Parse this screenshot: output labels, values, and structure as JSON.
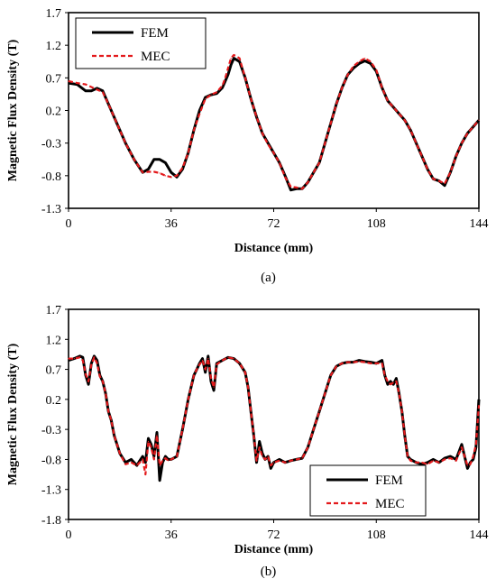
{
  "chart_data": [
    {
      "type": "line",
      "panel_label": "(a)",
      "xlabel": "Distance (mm)",
      "ylabel": "Magnetic Flux Density (T)",
      "xlim": [
        0,
        144
      ],
      "ylim": [
        -1.3,
        1.7
      ],
      "xticks": [
        0,
        36,
        72,
        108,
        144
      ],
      "yticks": [
        "1.7",
        "1.2",
        "0.7",
        "0.2",
        "-0.3",
        "-0.8",
        "-1.3"
      ],
      "legend_position": "top-left",
      "grid": false,
      "series": [
        {
          "name": "FEM",
          "color": "#000000",
          "style": "solid",
          "x": [
            0,
            3,
            6,
            8,
            10,
            12,
            14,
            17,
            20,
            23,
            26,
            28,
            30,
            32,
            34,
            36,
            38,
            40,
            42,
            44,
            46,
            48,
            50,
            52,
            54,
            55,
            56,
            57,
            58,
            60,
            62,
            64,
            66,
            68,
            70,
            72,
            74,
            76,
            78,
            80,
            82,
            84,
            86,
            88,
            90,
            92,
            94,
            96,
            98,
            100,
            102,
            104,
            106,
            108,
            110,
            112,
            114,
            116,
            118,
            120,
            122,
            124,
            126,
            128,
            130,
            132,
            134,
            136,
            138,
            140,
            142,
            144
          ],
          "values": [
            0.62,
            0.6,
            0.5,
            0.5,
            0.54,
            0.5,
            0.3,
            0.0,
            -0.3,
            -0.55,
            -0.75,
            -0.7,
            -0.55,
            -0.55,
            -0.6,
            -0.75,
            -0.82,
            -0.7,
            -0.45,
            -0.1,
            0.2,
            0.4,
            0.44,
            0.46,
            0.55,
            0.65,
            0.75,
            0.9,
            1.0,
            0.95,
            0.7,
            0.38,
            0.1,
            -0.15,
            -0.3,
            -0.45,
            -0.6,
            -0.8,
            -1.02,
            -1.0,
            -1.0,
            -0.9,
            -0.75,
            -0.6,
            -0.3,
            0.0,
            0.3,
            0.55,
            0.75,
            0.85,
            0.92,
            0.96,
            0.92,
            0.8,
            0.55,
            0.35,
            0.25,
            0.15,
            0.05,
            -0.1,
            -0.3,
            -0.5,
            -0.7,
            -0.85,
            -0.88,
            -0.95,
            -0.75,
            -0.5,
            -0.3,
            -0.15,
            -0.05,
            0.05
          ]
        },
        {
          "name": "MEC",
          "color": "#e31a1c",
          "style": "dashed",
          "x": [
            0,
            3,
            6,
            8,
            10,
            12,
            14,
            17,
            20,
            23,
            26,
            28,
            30,
            32,
            34,
            36,
            38,
            40,
            42,
            44,
            46,
            48,
            50,
            52,
            54,
            55,
            56,
            57,
            58,
            60,
            62,
            64,
            66,
            68,
            70,
            72,
            74,
            76,
            78,
            80,
            82,
            84,
            86,
            88,
            90,
            92,
            94,
            96,
            98,
            100,
            102,
            104,
            106,
            108,
            110,
            112,
            114,
            116,
            118,
            120,
            122,
            124,
            126,
            128,
            130,
            132,
            134,
            136,
            138,
            140,
            142,
            144
          ],
          "values": [
            0.65,
            0.62,
            0.6,
            0.56,
            0.52,
            0.48,
            0.3,
            0.0,
            -0.3,
            -0.55,
            -0.75,
            -0.74,
            -0.74,
            -0.76,
            -0.8,
            -0.82,
            -0.8,
            -0.68,
            -0.45,
            -0.1,
            0.15,
            0.38,
            0.44,
            0.48,
            0.58,
            0.7,
            0.85,
            1.0,
            1.05,
            1.0,
            0.7,
            0.38,
            0.1,
            -0.15,
            -0.32,
            -0.45,
            -0.6,
            -0.82,
            -0.97,
            -0.98,
            -1.0,
            -0.9,
            -0.75,
            -0.6,
            -0.3,
            0.0,
            0.3,
            0.55,
            0.75,
            0.88,
            0.95,
            1.0,
            0.95,
            0.82,
            0.55,
            0.35,
            0.25,
            0.15,
            0.05,
            -0.1,
            -0.3,
            -0.5,
            -0.7,
            -0.85,
            -0.88,
            -0.92,
            -0.75,
            -0.5,
            -0.3,
            -0.15,
            -0.05,
            0.05
          ]
        }
      ]
    },
    {
      "type": "line",
      "panel_label": "(b)",
      "xlabel": "Distance (mm)",
      "ylabel": "Magnetic Flux Density (T)",
      "xlim": [
        0,
        144
      ],
      "ylim": [
        -1.8,
        1.7
      ],
      "xticks": [
        0,
        36,
        72,
        108,
        144
      ],
      "yticks": [
        "1.7",
        "1.2",
        "0.7",
        "0.2",
        "-0.3",
        "-0.8",
        "-1.3",
        "-1.8"
      ],
      "legend_position": "bottom-right",
      "grid": false,
      "series": [
        {
          "name": "FEM",
          "color": "#000000",
          "style": "solid",
          "x": [
            0,
            2,
            4,
            5,
            6,
            7,
            8,
            9,
            10,
            11,
            12,
            13,
            14,
            15,
            16,
            18,
            20,
            22,
            24,
            25,
            26,
            27,
            28,
            29,
            30,
            31,
            32,
            33,
            34,
            35,
            36,
            38,
            40,
            42,
            44,
            45,
            46,
            47,
            48,
            49,
            50,
            51,
            52,
            54,
            56,
            58,
            60,
            62,
            63,
            64,
            65,
            66,
            67,
            68,
            69,
            70,
            71,
            72,
            74,
            76,
            78,
            80,
            82,
            84,
            86,
            88,
            90,
            92,
            94,
            96,
            98,
            100,
            102,
            104,
            106,
            108,
            110,
            111,
            112,
            113,
            114,
            115,
            116,
            117,
            118,
            119,
            120,
            122,
            124,
            126,
            128,
            130,
            132,
            134,
            136,
            138,
            140,
            141,
            142,
            143,
            144
          ],
          "values": [
            0.85,
            0.88,
            0.92,
            0.9,
            0.6,
            0.45,
            0.8,
            0.92,
            0.85,
            0.6,
            0.5,
            0.3,
            0.0,
            -0.15,
            -0.4,
            -0.7,
            -0.85,
            -0.8,
            -0.9,
            -0.82,
            -0.75,
            -0.85,
            -0.45,
            -0.55,
            -0.75,
            -0.35,
            -1.15,
            -0.85,
            -0.75,
            -0.8,
            -0.8,
            -0.75,
            -0.3,
            0.2,
            0.6,
            0.7,
            0.8,
            0.88,
            0.65,
            0.92,
            0.5,
            0.35,
            0.8,
            0.85,
            0.9,
            0.88,
            0.8,
            0.65,
            0.4,
            0.0,
            -0.4,
            -0.85,
            -0.5,
            -0.7,
            -0.8,
            -0.75,
            -0.95,
            -0.85,
            -0.8,
            -0.85,
            -0.82,
            -0.8,
            -0.78,
            -0.6,
            -0.3,
            0.0,
            0.3,
            0.6,
            0.75,
            0.8,
            0.82,
            0.82,
            0.85,
            0.83,
            0.82,
            0.8,
            0.85,
            0.6,
            0.45,
            0.5,
            0.45,
            0.55,
            0.3,
            0.0,
            -0.4,
            -0.75,
            -0.8,
            -0.85,
            -0.88,
            -0.85,
            -0.8,
            -0.85,
            -0.78,
            -0.75,
            -0.8,
            -0.55,
            -0.95,
            -0.85,
            -0.8,
            -0.6,
            0.2
          ]
        },
        {
          "name": "MEC",
          "color": "#e31a1c",
          "style": "dashed",
          "x": [
            0,
            2,
            4,
            5,
            6,
            7,
            8,
            9,
            10,
            11,
            12,
            13,
            14,
            15,
            16,
            18,
            20,
            22,
            24,
            25,
            26,
            27,
            28,
            29,
            30,
            31,
            32,
            33,
            34,
            35,
            36,
            38,
            40,
            42,
            44,
            45,
            46,
            47,
            48,
            49,
            50,
            51,
            52,
            54,
            56,
            58,
            60,
            62,
            63,
            64,
            65,
            66,
            67,
            68,
            69,
            70,
            71,
            72,
            74,
            76,
            78,
            80,
            82,
            84,
            86,
            88,
            90,
            92,
            94,
            96,
            98,
            100,
            102,
            104,
            106,
            108,
            110,
            111,
            112,
            113,
            114,
            115,
            116,
            117,
            118,
            119,
            120,
            122,
            124,
            126,
            128,
            130,
            132,
            134,
            136,
            138,
            140,
            141,
            142,
            143,
            144
          ],
          "values": [
            0.88,
            0.88,
            0.9,
            0.85,
            0.62,
            0.5,
            0.78,
            0.9,
            0.8,
            0.58,
            0.5,
            0.3,
            0.0,
            -0.15,
            -0.4,
            -0.7,
            -0.88,
            -0.85,
            -0.9,
            -0.85,
            -0.8,
            -1.05,
            -0.5,
            -0.6,
            -0.8,
            -0.4,
            -0.9,
            -0.82,
            -0.78,
            -0.82,
            -0.8,
            -0.75,
            -0.3,
            0.2,
            0.6,
            0.7,
            0.78,
            0.85,
            0.7,
            0.88,
            0.55,
            0.4,
            0.78,
            0.85,
            0.9,
            0.88,
            0.8,
            0.65,
            0.4,
            0.0,
            -0.4,
            -0.82,
            -0.6,
            -0.75,
            -0.8,
            -0.75,
            -0.9,
            -0.85,
            -0.82,
            -0.85,
            -0.82,
            -0.8,
            -0.78,
            -0.6,
            -0.3,
            0.0,
            0.3,
            0.6,
            0.75,
            0.8,
            0.82,
            0.82,
            0.83,
            0.82,
            0.8,
            0.8,
            0.8,
            0.6,
            0.5,
            0.45,
            0.48,
            0.5,
            0.3,
            0.0,
            -0.4,
            -0.75,
            -0.82,
            -0.85,
            -0.85,
            -0.88,
            -0.82,
            -0.85,
            -0.8,
            -0.78,
            -0.82,
            -0.6,
            -0.9,
            -0.88,
            -0.75,
            -0.55,
            0.1
          ]
        }
      ]
    }
  ]
}
